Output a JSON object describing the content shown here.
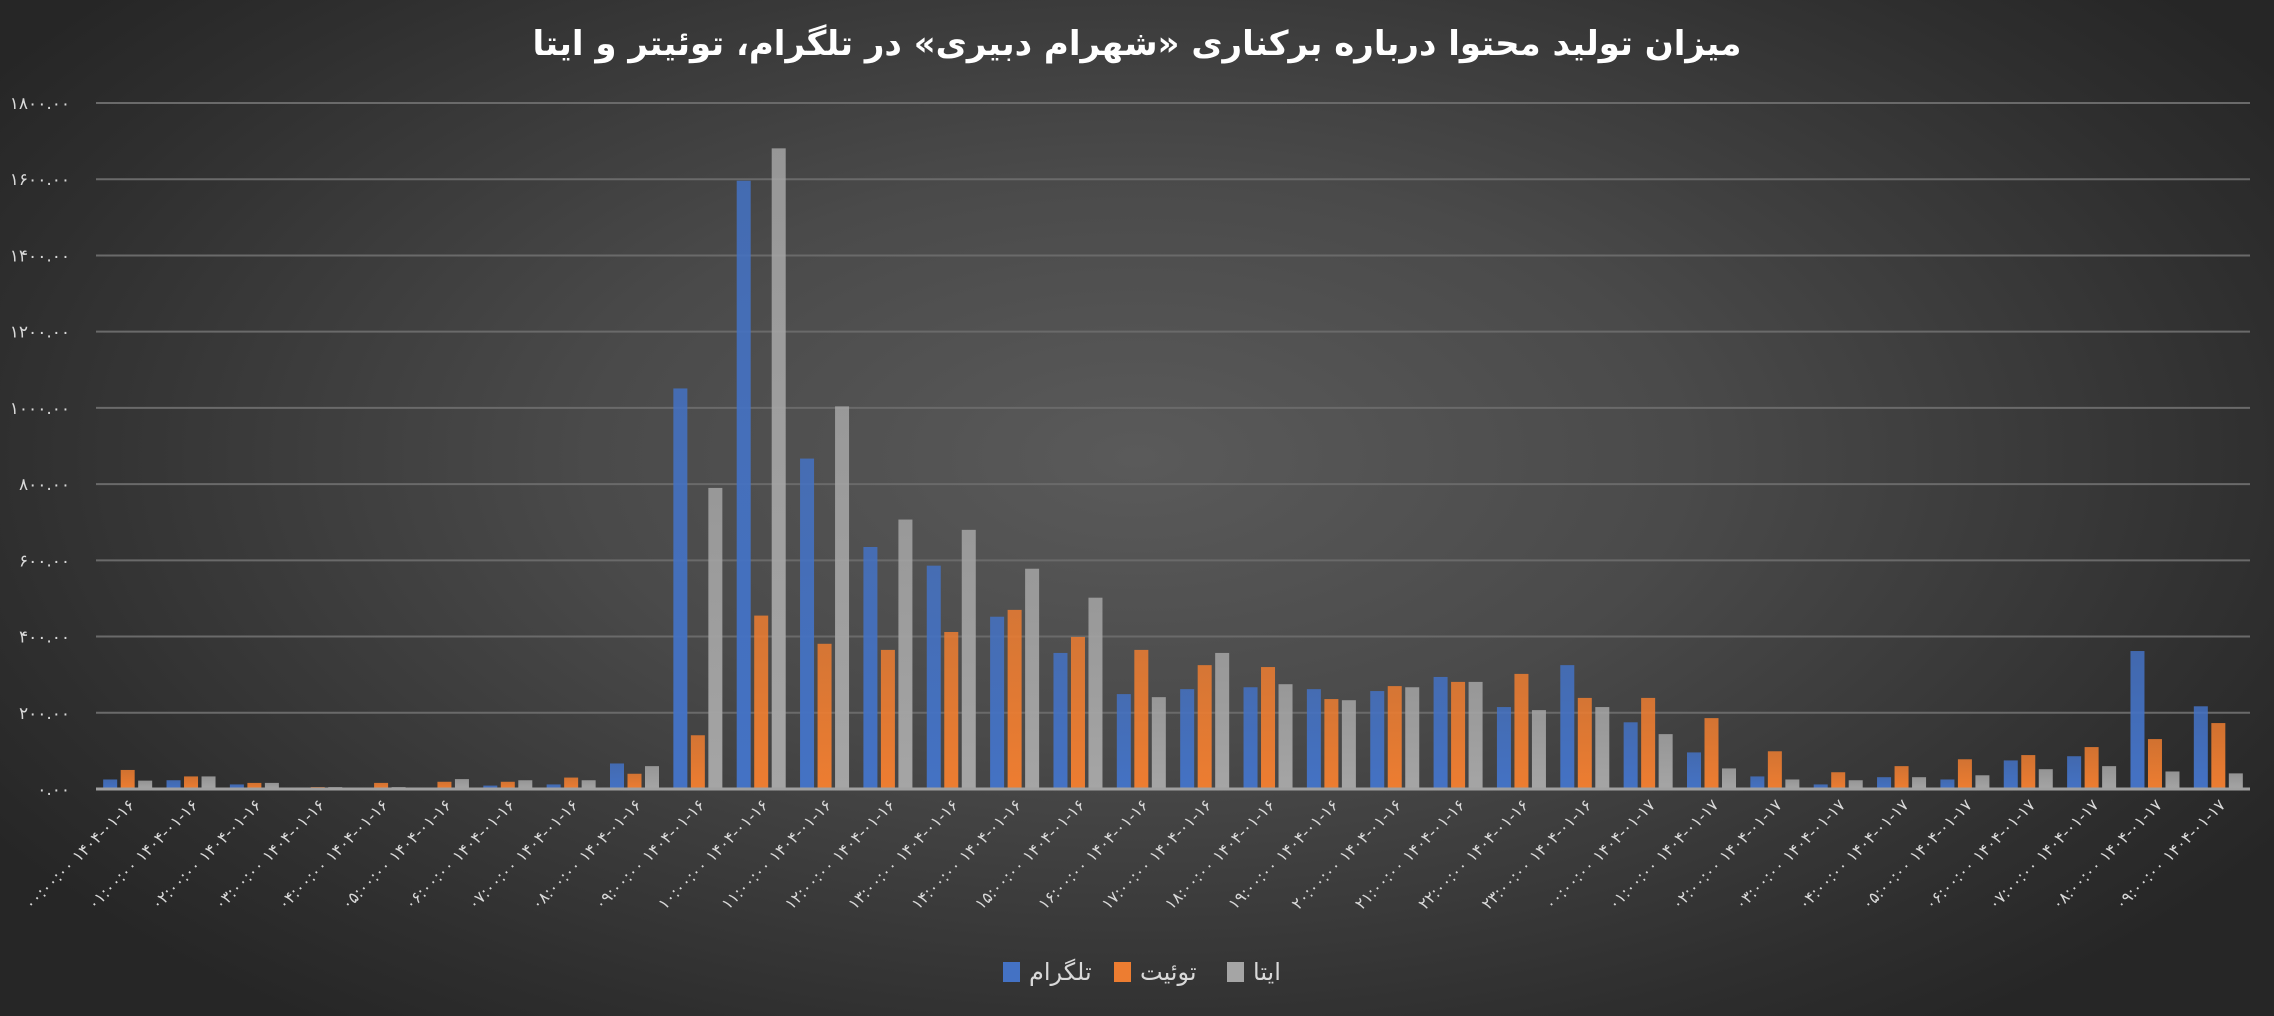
{
  "chart_data": {
    "type": "bar",
    "title": "میزان تولید محتوا درباره برکناری «شهرام دبیری» در تلگرام، توئیتر و ایتا",
    "xlabel": "",
    "ylabel": "",
    "ylim": [
      0,
      1800
    ],
    "yticks": [
      0,
      200,
      400,
      600,
      800,
      1000,
      1200,
      1400,
      1600,
      1800
    ],
    "ytick_labels": [
      "۰.۰۰",
      "۲۰۰.۰۰",
      "۴۰۰.۰۰",
      "۶۰۰.۰۰",
      "۸۰۰.۰۰",
      "۱۰۰۰.۰۰",
      "۱۲۰۰.۰۰",
      "۱۴۰۰.۰۰",
      "۱۶۰۰.۰۰",
      "۱۸۰۰.۰۰"
    ],
    "grid": true,
    "legend_position": "bottom",
    "categories": [
      "۰۰:۰۰:۰۰ ۱۴۰۴-۰۱-۱۶",
      "۰۱:۰۰:۰۰ ۱۴۰۴-۰۱-۱۶",
      "۰۲:۰۰:۰۰ ۱۴۰۴-۰۱-۱۶",
      "۰۳:۰۰:۰۰ ۱۴۰۴-۰۱-۱۶",
      "۰۴:۰۰:۰۰ ۱۴۰۴-۰۱-۱۶",
      "۰۵:۰۰:۰۰ ۱۴۰۴-۰۱-۱۶",
      "۰۶:۰۰:۰۰ ۱۴۰۴-۰۱-۱۶",
      "۰۷:۰۰:۰۰ ۱۴۰۴-۰۱-۱۶",
      "۰۸:۰۰:۰۰ ۱۴۰۴-۰۱-۱۶",
      "۰۹:۰۰:۰۰ ۱۴۰۴-۰۱-۱۶",
      "۱۰:۰۰:۰۰ ۱۴۰۴-۰۱-۱۶",
      "۱۱:۰۰:۰۰ ۱۴۰۴-۰۱-۱۶",
      "۱۲:۰۰:۰۰ ۱۴۰۴-۰۱-۱۶",
      "۱۳:۰۰:۰۰ ۱۴۰۴-۰۱-۱۶",
      "۱۴:۰۰:۰۰ ۱۴۰۴-۰۱-۱۶",
      "۱۵:۰۰:۰۰ ۱۴۰۴-۰۱-۱۶",
      "۱۶:۰۰:۰۰ ۱۴۰۴-۰۱-۱۶",
      "۱۷:۰۰:۰۰ ۱۴۰۴-۰۱-۱۶",
      "۱۸:۰۰:۰۰ ۱۴۰۴-۰۱-۱۶",
      "۱۹:۰۰:۰۰ ۱۴۰۴-۰۱-۱۶",
      "۲۰:۰۰:۰۰ ۱۴۰۴-۰۱-۱۶",
      "۲۱:۰۰:۰۰ ۱۴۰۴-۰۱-۱۶",
      "۲۲:۰۰:۰۰ ۱۴۰۴-۰۱-۱۶",
      "۲۳:۰۰:۰۰ ۱۴۰۴-۰۱-۱۶",
      "۰۰:۰۰:۰۰ ۱۴۰۴-۰۱-۱۷",
      "۰۱:۰۰:۰۰ ۱۴۰۴-۰۱-۱۷",
      "۰۲:۰۰:۰۰ ۱۴۰۴-۰۱-۱۷",
      "۰۳:۰۰:۰۰ ۱۴۰۴-۰۱-۱۷",
      "۰۴:۰۰:۰۰ ۱۴۰۴-۰۱-۱۷",
      "۰۵:۰۰:۰۰ ۱۴۰۴-۰۱-۱۷",
      "۰۶:۰۰:۰۰ ۱۴۰۴-۰۱-۱۷",
      "۰۷:۰۰:۰۰ ۱۴۰۴-۰۱-۱۷",
      "۰۸:۰۰:۰۰ ۱۴۰۴-۰۱-۱۷",
      "۰۹:۰۰:۰۰ ۱۴۰۴-۰۱-۱۷"
    ],
    "series": [
      {
        "name": "تلگرام",
        "color": "#4472C4",
        "values": [
          25,
          23,
          12,
          2,
          2,
          2,
          9,
          12,
          67,
          1051,
          1596,
          867,
          635,
          586,
          452,
          357,
          249,
          262,
          267,
          262,
          257,
          294,
          215,
          325,
          175,
          96,
          33,
          12,
          31,
          25,
          75,
          86,
          362,
          217
        ]
      },
      {
        "name": "توئیت",
        "color": "#ED7D31",
        "values": [
          50,
          33,
          16,
          5,
          16,
          19,
          19,
          30,
          40,
          141,
          455,
          381,
          365,
          412,
          470,
          399,
          365,
          325,
          320,
          236,
          270,
          281,
          302,
          239,
          239,
          186,
          99,
          44,
          60,
          78,
          89,
          110,
          131,
          173
        ]
      },
      {
        "name": "ایتا",
        "color": "#A5A5A5",
        "values": [
          22,
          33,
          16,
          5,
          5,
          26,
          23,
          23,
          60,
          790,
          1681,
          1004,
          707,
          680,
          578,
          502,
          241,
          357,
          275,
          233,
          267,
          281,
          207,
          215,
          144,
          54,
          25,
          23,
          31,
          36,
          52,
          60,
          46,
          41
        ]
      }
    ]
  }
}
